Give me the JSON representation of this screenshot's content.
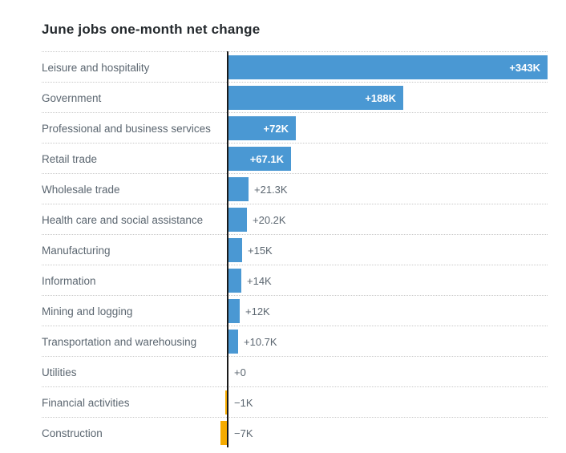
{
  "title": "June jobs one-month net change",
  "colors": {
    "positive_bar": "#4a98d3",
    "negative_bar": "#f5ab00",
    "axis": "#1a1a1a",
    "category_text": "#5b6670",
    "value_text_inside": "#ffffff",
    "value_text_outside": "#5b6670",
    "separator": "#c9c9c9",
    "title_text": "#24292d",
    "background": "#ffffff"
  },
  "chart_data": {
    "type": "bar",
    "orientation": "horizontal",
    "title": "June jobs one-month net change",
    "xlabel": "",
    "ylabel": "",
    "xlim": [
      -20,
      350
    ],
    "grid": "dotted horizontal row separators",
    "legend": "none",
    "value_label_style": "inside bar (white) for large values, outside right (gray) for small and negative values",
    "categories": [
      "Leisure and hospitality",
      "Government",
      "Professional and business services",
      "Retail trade",
      "Wholesale trade",
      "Health care and social assistance",
      "Manufacturing",
      "Information",
      "Mining and logging",
      "Transportation and warehousing",
      "Utilities",
      "Financial activities",
      "Construction"
    ],
    "values_thousands": [
      343,
      188,
      72,
      67.1,
      21.3,
      20.2,
      15,
      14,
      12,
      10.7,
      0,
      -1,
      -7
    ],
    "value_labels": [
      "+343K",
      "+188K",
      "+72K",
      "+67.1K",
      "+21.3K",
      "+20.2K",
      "+15K",
      "+14K",
      "+12K",
      "+10.7K",
      "+0",
      "−1K",
      "−7K"
    ]
  }
}
